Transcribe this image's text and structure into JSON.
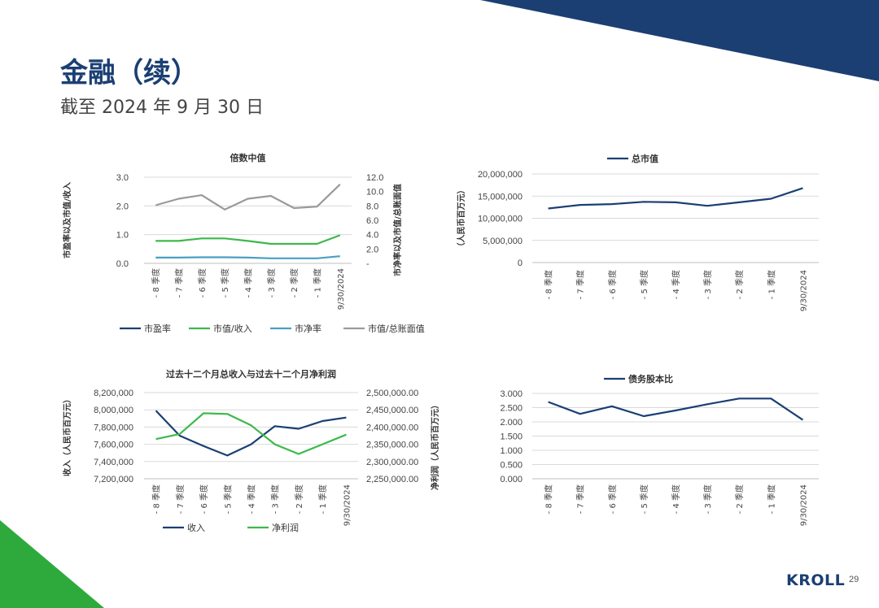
{
  "page": {
    "title": "金融（续）",
    "subtitle": "截至 2024 年 9 月 30 日",
    "logo_text": "KROLL",
    "page_number": "29",
    "colors": {
      "navy": "#1b3f73",
      "green": "#2eaa3c"
    }
  },
  "chart_data": [
    {
      "type": "line",
      "title": "倍数中值",
      "categories": [
        "- 8 季度",
        "- 7 季度",
        "- 6 季度",
        "- 5 季度",
        "- 4 季度",
        "- 3 季度",
        "- 2 季度",
        "- 1 季度",
        "9/30/2024"
      ],
      "ylabel": "市盈率以及市值/收入",
      "y2label": "市净率以及市值/总账面值",
      "ylim": [
        0,
        3
      ],
      "y2lim": [
        0,
        12
      ],
      "yticks": [
        "0.0",
        "1.0",
        "2.0",
        "3.0"
      ],
      "y2ticks": [
        "-",
        "2.0",
        "4.0",
        "6.0",
        "8.0",
        "10.0",
        "12.0"
      ],
      "legend_position": "bottom",
      "series": [
        {
          "name": "市盈率",
          "axis": "left",
          "color": "#1b3f73",
          "values": [
            null,
            null,
            null,
            null,
            null,
            null,
            null,
            null,
            null
          ]
        },
        {
          "name": "市值/收入",
          "axis": "left",
          "color": "#3cb94a",
          "values": [
            0.78,
            0.78,
            0.87,
            0.87,
            0.78,
            0.68,
            0.68,
            0.68,
            0.98
          ]
        },
        {
          "name": "市净率",
          "axis": "right",
          "color": "#4a9fc4",
          "values": [
            0.8,
            0.8,
            0.85,
            0.85,
            0.8,
            0.7,
            0.7,
            0.7,
            1.0
          ]
        },
        {
          "name": "市值/总账面值",
          "axis": "right",
          "color": "#9a9a9a",
          "values": [
            8.1,
            9.0,
            9.5,
            7.5,
            9.0,
            9.4,
            7.7,
            7.9,
            11.0
          ]
        }
      ]
    },
    {
      "type": "line",
      "title": "总市值",
      "categories": [
        "- 8 季度",
        "- 7 季度",
        "- 6 季度",
        "- 5 季度",
        "- 4 季度",
        "- 3 季度",
        "- 2 季度",
        "- 1 季度",
        "9/30/2024"
      ],
      "ylabel": "（人民币百万元）",
      "ylim": [
        0,
        20000000
      ],
      "yticks": [
        "0",
        "5,000,000",
        "10,000,000",
        "15,000,000",
        "20,000,000"
      ],
      "legend_position": "top",
      "series": [
        {
          "name": "总市值",
          "color": "#1b3f73",
          "values": [
            12200000,
            13000000,
            13200000,
            13700000,
            13600000,
            12800000,
            13600000,
            14400000,
            16800000
          ]
        }
      ]
    },
    {
      "type": "line",
      "title": "过去十二个月总收入与过去十二个月净利润",
      "categories": [
        "- 8 季度",
        "- 7 季度",
        "- 6 季度",
        "- 5 季度",
        "- 4 季度",
        "- 3 季度",
        "- 2 季度",
        "- 1 季度",
        "9/30/2024"
      ],
      "ylabel": "收入（人民币百万元）",
      "y2label": "净利润（人民币百万元）",
      "ylim": [
        7200000,
        8200000
      ],
      "y2lim": [
        2250000,
        2500000
      ],
      "yticks": [
        "7,200,000",
        "7,400,000",
        "7,600,000",
        "7,800,000",
        "8,000,000",
        "8,200,000"
      ],
      "y2ticks": [
        "2,250,000.00",
        "2,300,000.00",
        "2,350,000.00",
        "2,400,000.00",
        "2,450,000.00",
        "2,500,000.00"
      ],
      "legend_position": "bottom",
      "series": [
        {
          "name": "收入",
          "axis": "left",
          "color": "#1b3f73",
          "values": [
            7990000,
            7700000,
            7580000,
            7470000,
            7600000,
            7810000,
            7780000,
            7870000,
            7910000
          ]
        },
        {
          "name": "净利润",
          "axis": "right",
          "color": "#3cb94a",
          "values": [
            2365000,
            2380000,
            2440000,
            2438000,
            2405000,
            2350000,
            2322000,
            2350000,
            2378000
          ]
        }
      ]
    },
    {
      "type": "line",
      "title": "债务股本比",
      "categories": [
        "- 8 季度",
        "- 7 季度",
        "- 6 季度",
        "- 5 季度",
        "- 4 季度",
        "- 3 季度",
        "- 2 季度",
        "- 1 季度",
        "9/30/2024"
      ],
      "ylim": [
        0,
        3
      ],
      "yticks": [
        "0.000",
        "0.500",
        "1.000",
        "1.500",
        "2.000",
        "2.500",
        "3.000"
      ],
      "legend_position": "top",
      "series": [
        {
          "name": "债务股本比",
          "color": "#1b3f73",
          "values": [
            2.7,
            2.28,
            2.55,
            2.2,
            2.4,
            2.62,
            2.82,
            2.82,
            2.07
          ]
        }
      ]
    }
  ]
}
